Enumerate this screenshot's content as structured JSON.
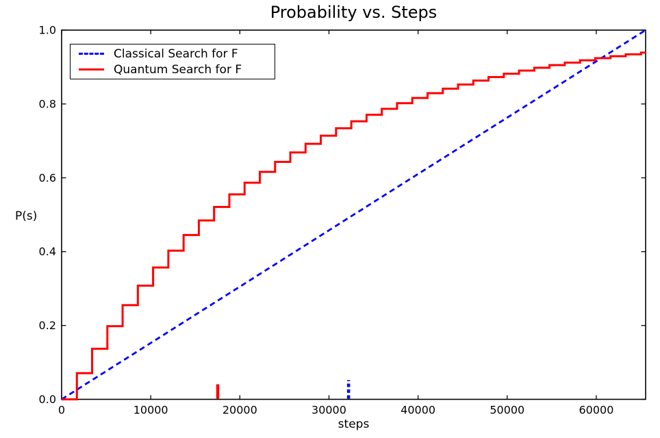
{
  "figure": {
    "background_color": "#ffffff",
    "axes_color": "#000000",
    "text_color": "#000000"
  },
  "chart_data": {
    "type": "line",
    "title": "Probability vs. Steps",
    "xlabel": "steps",
    "ylabel": "P(s)",
    "xlim": [
      0,
      65536
    ],
    "ylim": [
      0.0,
      1.0
    ],
    "xticks": [
      0,
      10000,
      20000,
      30000,
      40000,
      50000,
      60000
    ],
    "xtick_labels": [
      "0",
      "10000",
      "20000",
      "30000",
      "40000",
      "50000",
      "60000"
    ],
    "yticks": [
      0.0,
      0.2,
      0.4,
      0.6,
      0.8,
      1.0
    ],
    "ytick_labels": [
      "0.0",
      "0.2",
      "0.4",
      "0.6",
      "0.8",
      "1.0"
    ],
    "grid": false,
    "legend_position": "upper-left",
    "series": [
      {
        "name": "Classical Search for F",
        "color": "#0000ff",
        "line_style": "dashed",
        "shape": "line",
        "points": [
          [
            0,
            0.0
          ],
          [
            65536,
            1.0
          ]
        ]
      },
      {
        "name": "Quantum Search for F",
        "color": "#ff0000",
        "line_style": "solid",
        "shape": "step",
        "step_width": 1711,
        "trial_success_probability": 0.071,
        "cumulative_values": [
          0.0,
          0.071,
          0.137,
          0.1982,
          0.2551,
          0.308,
          0.3571,
          0.4027,
          0.4451,
          0.4845,
          0.5211,
          0.5551,
          0.5867,
          0.616,
          0.6433,
          0.6686,
          0.6921,
          0.714,
          0.7343,
          0.7531,
          0.7707,
          0.7869,
          0.8021,
          0.8162,
          0.8292,
          0.8414,
          0.8527,
          0.8632,
          0.8728,
          0.8819,
          0.8903,
          0.898,
          0.9053,
          0.912,
          0.9182,
          0.924,
          0.9294,
          0.9344,
          0.9391
        ]
      }
    ],
    "rug_markers": [
      {
        "series": "Quantum Search for F",
        "x": 17520,
        "color": "#ff0000",
        "style": "solid"
      },
      {
        "series": "Classical Search for F",
        "x": 32200,
        "color": "#0000ff",
        "style": "dashed"
      }
    ]
  }
}
